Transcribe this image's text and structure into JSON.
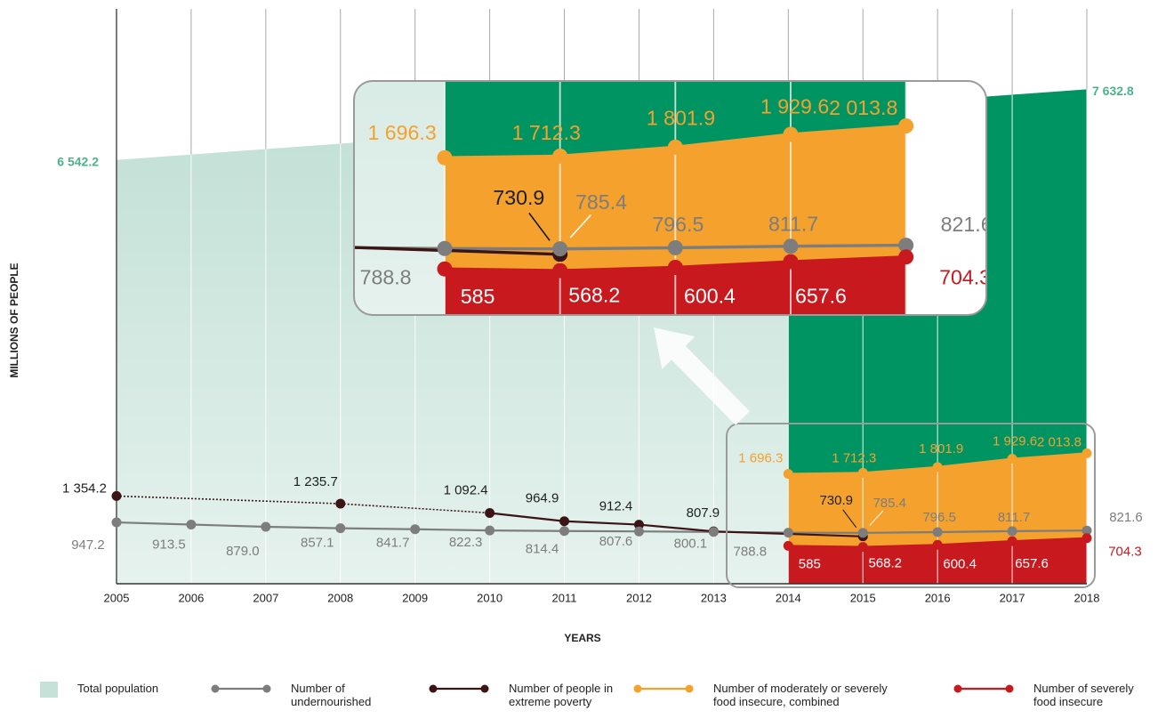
{
  "chart_data": {
    "type": "line",
    "y_label": "MILLIONS OF PEOPLE",
    "x_label": "YEARS",
    "xlim": [
      2005,
      2018
    ],
    "xticks": [
      2005,
      2006,
      2007,
      2008,
      2009,
      2010,
      2011,
      2012,
      2013,
      2014,
      2015,
      2016,
      2017,
      2018
    ],
    "ylim": [
      0,
      8874
    ],
    "series": [
      {
        "name": "Total population",
        "style": "area",
        "color": "#c4e2d8",
        "x": [
          2005,
          2018
        ],
        "values": [
          6542.2,
          7632.8
        ],
        "value_labels": [
          "6 542.2",
          "7 632.8"
        ]
      },
      {
        "name": "Number of undernourished",
        "style": "line",
        "color": "#7d7d7d",
        "x": [
          2005,
          2006,
          2007,
          2008,
          2009,
          2010,
          2011,
          2012,
          2013,
          2014,
          2015,
          2016,
          2017,
          2018
        ],
        "values": [
          947.2,
          913.5,
          879.0,
          857.1,
          841.7,
          822.3,
          814.4,
          807.6,
          800.1,
          788.8,
          785.4,
          796.5,
          811.7,
          821.6
        ],
        "value_labels": [
          "947.2",
          "913.5",
          "879.0",
          "857.1",
          "841.7",
          "822.3",
          "814.4",
          "807.6",
          "800.1",
          "788.8",
          "785.4",
          "796.5",
          "811.7",
          "821.6"
        ]
      },
      {
        "name": "Number of people in extreme poverty",
        "style": "line",
        "color": "#3b1416",
        "x": [
          2005,
          2008,
          2010,
          2011,
          2012,
          2013,
          2015
        ],
        "values": [
          1354.2,
          1235.7,
          1092.4,
          964.9,
          912.4,
          807.9,
          730.9
        ],
        "value_labels": [
          "1 354.2",
          "1 235.7",
          "1 092.4",
          "964.9",
          "912.4",
          "807.9",
          "730.9"
        ]
      },
      {
        "name": "Number of moderately or severely food insecure, combined",
        "style": "band",
        "color": "#f4a12d",
        "highlight": "#009462",
        "x": [
          2014,
          2015,
          2016,
          2017,
          2018
        ],
        "values": [
          1696.3,
          1712.3,
          1801.9,
          1929.6,
          2013.8
        ],
        "value_labels": [
          "1 696.3",
          "1 712.3",
          "1 801.9",
          "1 929.6",
          "2 013.8"
        ]
      },
      {
        "name": "Number of severely food insecure",
        "style": "band",
        "color": "#c8191f",
        "x": [
          2014,
          2015,
          2016,
          2017,
          2018
        ],
        "values": [
          585,
          568.2,
          600.4,
          657.6,
          704.3
        ]
      }
    ]
  }
}
